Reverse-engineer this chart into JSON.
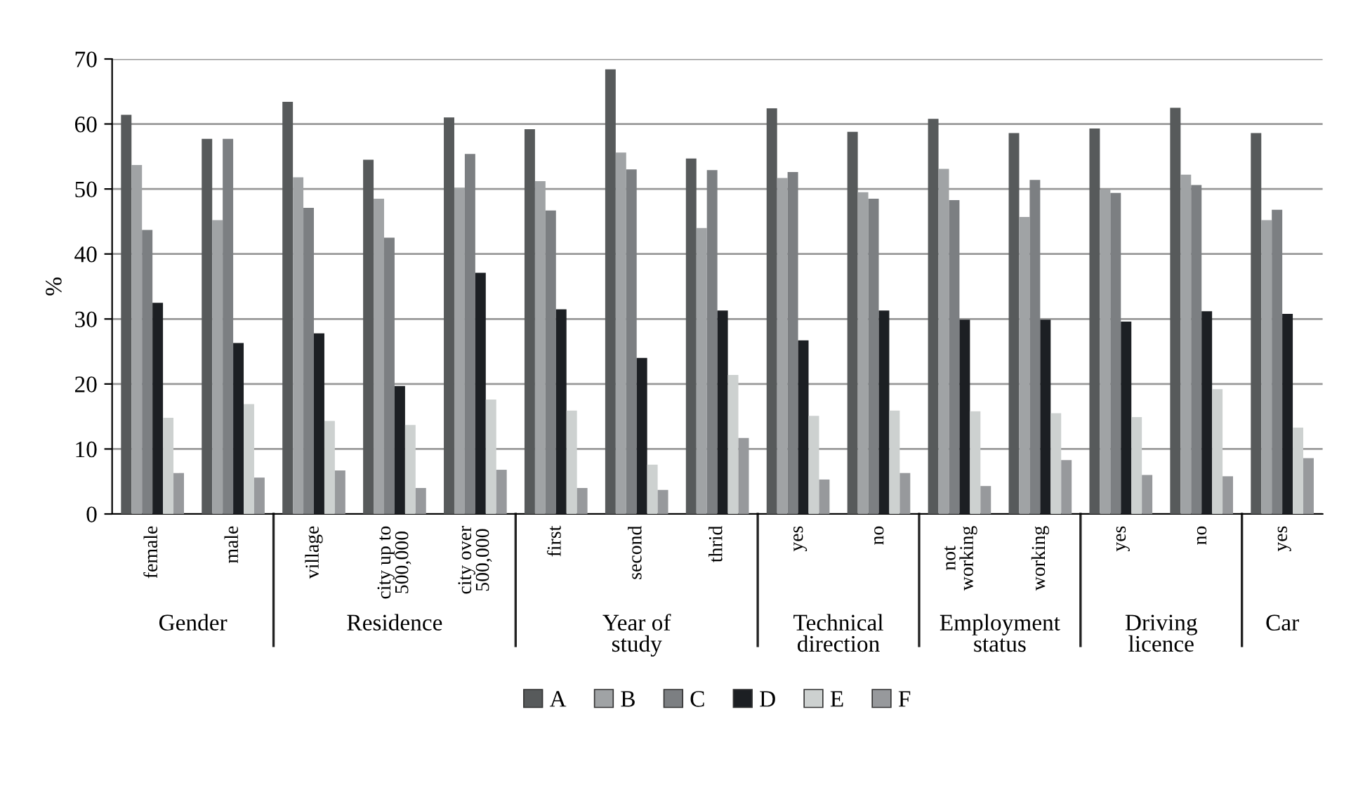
{
  "chart_data": {
    "type": "bar",
    "ylabel": "%",
    "categories": [
      "female",
      "male",
      "village",
      "city up to 500,000",
      "city over 500,000",
      "first",
      "second",
      "thrid",
      "yes",
      "no",
      "not working",
      "working",
      "yes",
      "no",
      "yes"
    ],
    "series": [
      {
        "name": "A",
        "color": "#575a5b",
        "values": [
          61.4,
          57.7,
          63.4,
          54.5,
          61.0,
          59.2,
          68.4,
          54.7,
          62.4,
          58.8,
          60.8,
          58.6,
          59.3,
          62.5,
          58.6
        ]
      },
      {
        "name": "B",
        "color": "#a0a3a5",
        "values": [
          53.7,
          45.2,
          51.8,
          48.5,
          50.2,
          51.2,
          55.6,
          44.0,
          51.7,
          49.5,
          53.1,
          45.7,
          49.9,
          52.2,
          45.2
        ]
      },
      {
        "name": "C",
        "color": "#7c7f82",
        "values": [
          43.7,
          57.7,
          47.1,
          42.5,
          55.4,
          46.7,
          53.0,
          52.9,
          52.6,
          48.5,
          48.3,
          51.4,
          49.4,
          50.6,
          46.8
        ]
      },
      {
        "name": "D",
        "color": "#1c1f23",
        "values": [
          32.5,
          26.3,
          27.8,
          19.7,
          37.1,
          31.5,
          24.0,
          31.3,
          26.7,
          31.3,
          29.9,
          29.9,
          29.6,
          31.2,
          30.8
        ]
      },
      {
        "name": "E",
        "color": "#cdd1d0",
        "values": [
          14.8,
          16.9,
          14.3,
          13.7,
          17.6,
          15.9,
          7.6,
          21.4,
          15.1,
          15.9,
          15.8,
          15.5,
          14.9,
          19.2,
          13.3
        ]
      },
      {
        "name": "F",
        "color": "#97999c",
        "values": [
          6.3,
          5.6,
          6.7,
          4.0,
          6.8,
          4.0,
          3.7,
          11.7,
          5.3,
          6.3,
          4.3,
          8.3,
          6.0,
          5.8,
          8.6
        ]
      }
    ],
    "ylim": [
      0,
      70
    ],
    "yticks": [
      0,
      10,
      20,
      30,
      40,
      50,
      60,
      70
    ],
    "grid": "y",
    "legend": "bottom",
    "annotations": [
      "Gender",
      "Residence",
      "Year of study",
      "Technical direction",
      "Employment status",
      "Driving licence",
      "Car"
    ]
  }
}
